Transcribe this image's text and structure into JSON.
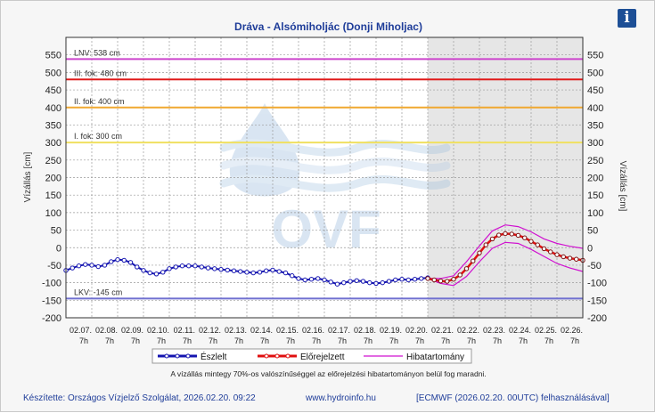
{
  "title": "Dráva - Alsómiholjác (Donji Miholjac)",
  "info_icon": "info-icon",
  "note": "A vízállás mintegy 70%-os valószínűséggel az előrejelzési hibatartományon belül fog maradni.",
  "footer": {
    "credit": "Készítette: Országos Vízjelző Szolgálat, 2026.02.20. 09:22",
    "url": "www.hydroinfo.hu",
    "model": "[ECMWF (2026.02.20. 00UTC) felhasználásával]"
  },
  "watermark": "OVF",
  "chart_data": {
    "type": "line",
    "title": "Dráva - Alsómiholjác (Donji Miholjac)",
    "ylabel_left": "Vízállás [cm]",
    "ylabel_right": "Vízállás [cm]",
    "ylim": [
      -200,
      600
    ],
    "yticks": [
      -200,
      -150,
      -100,
      -50,
      0,
      50,
      100,
      150,
      200,
      250,
      300,
      350,
      400,
      450,
      500,
      550
    ],
    "x_categories": [
      "02.07.",
      "02.08.",
      "02.09.",
      "02.10.",
      "02.11.",
      "02.12.",
      "02.13.",
      "02.14.",
      "02.15.",
      "02.16.",
      "02.17.",
      "02.18.",
      "02.19.",
      "02.20.",
      "02.21.",
      "02.22.",
      "02.23.",
      "02.24.",
      "02.25.",
      "02.26."
    ],
    "x_sub_label": "7h",
    "forecast_start": "02.20. 7h",
    "reference_lines": [
      {
        "label": "LNV: 538 cm",
        "value": 538,
        "color": "#cc44cc"
      },
      {
        "label": "III. fok: 480 cm",
        "value": 480,
        "color": "#e01a1a"
      },
      {
        "label": "II. fok: 400 cm",
        "value": 400,
        "color": "#f0a830"
      },
      {
        "label": "I. fok: 300 cm",
        "value": 300,
        "color": "#f0e060"
      },
      {
        "label": "LKV: -145 cm",
        "value": -145,
        "color": "#7070d0"
      }
    ],
    "legend": [
      "Észlelt",
      "Előrejelzett",
      "Hibatartomány"
    ],
    "colors": {
      "observed": "#1515b0",
      "forecast": "#e01010",
      "band": "#d010d0"
    },
    "series": [
      {
        "name": "Észlelt",
        "x": [
          6.0,
          6.25,
          6.5,
          6.75,
          7.0,
          7.25,
          7.5,
          7.75,
          8.0,
          8.25,
          8.5,
          8.75,
          9.0,
          9.25,
          9.5,
          9.75,
          10.0,
          10.25,
          10.5,
          10.75,
          11.0,
          11.25,
          11.5,
          11.75,
          12.0,
          12.25,
          12.5,
          12.75,
          13.0,
          13.25,
          13.5,
          13.75,
          14.0,
          14.25,
          14.5,
          14.75,
          15.0,
          15.25,
          15.5,
          15.75,
          16.0,
          16.25,
          16.5,
          16.75,
          17.0,
          17.25,
          17.5,
          17.75,
          18.0,
          18.25,
          18.5,
          18.75,
          19.0,
          19.25,
          19.5,
          19.75,
          20.0
        ],
        "values": [
          -65,
          -58,
          -52,
          -48,
          -50,
          -54,
          -50,
          -40,
          -34,
          -36,
          -42,
          -55,
          -65,
          -72,
          -75,
          -70,
          -60,
          -55,
          -52,
          -52,
          -52,
          -55,
          -58,
          -60,
          -62,
          -64,
          -66,
          -68,
          -70,
          -72,
          -70,
          -66,
          -64,
          -68,
          -72,
          -80,
          -88,
          -92,
          -90,
          -88,
          -92,
          -98,
          -104,
          -100,
          -96,
          -94,
          -96,
          -100,
          -102,
          -100,
          -96,
          -92,
          -90,
          -92,
          -90,
          -88,
          -86
        ]
      },
      {
        "name": "Előrejelzett",
        "x": [
          20.0,
          20.25,
          20.5,
          20.75,
          21.0,
          21.25,
          21.5,
          21.75,
          22.0,
          22.25,
          22.5,
          22.75,
          23.0,
          23.25,
          23.5,
          23.75,
          24.0,
          24.25,
          24.5,
          24.75,
          25.0,
          25.25,
          25.5,
          25.75,
          26.0
        ],
        "values": [
          -88,
          -92,
          -95,
          -96,
          -90,
          -78,
          -60,
          -38,
          -15,
          8,
          25,
          36,
          40,
          39,
          35,
          28,
          18,
          8,
          -3,
          -12,
          -20,
          -26,
          -30,
          -33,
          -36
        ]
      },
      {
        "name": "Hibatartomány felső",
        "x": [
          20.0,
          20.5,
          21.0,
          21.5,
          22.0,
          22.5,
          23.0,
          23.5,
          24.0,
          24.5,
          25.0,
          25.5,
          26.0
        ],
        "values": [
          -88,
          -88,
          -80,
          -40,
          5,
          48,
          65,
          60,
          45,
          25,
          12,
          4,
          -2
        ]
      },
      {
        "name": "Hibatartomány alsó",
        "x": [
          20.0,
          20.5,
          21.0,
          21.5,
          22.0,
          22.5,
          23.0,
          23.5,
          24.0,
          24.5,
          25.0,
          25.5,
          26.0
        ],
        "values": [
          -88,
          -102,
          -108,
          -82,
          -40,
          -2,
          15,
          12,
          -5,
          -25,
          -45,
          -58,
          -68
        ]
      }
    ]
  }
}
